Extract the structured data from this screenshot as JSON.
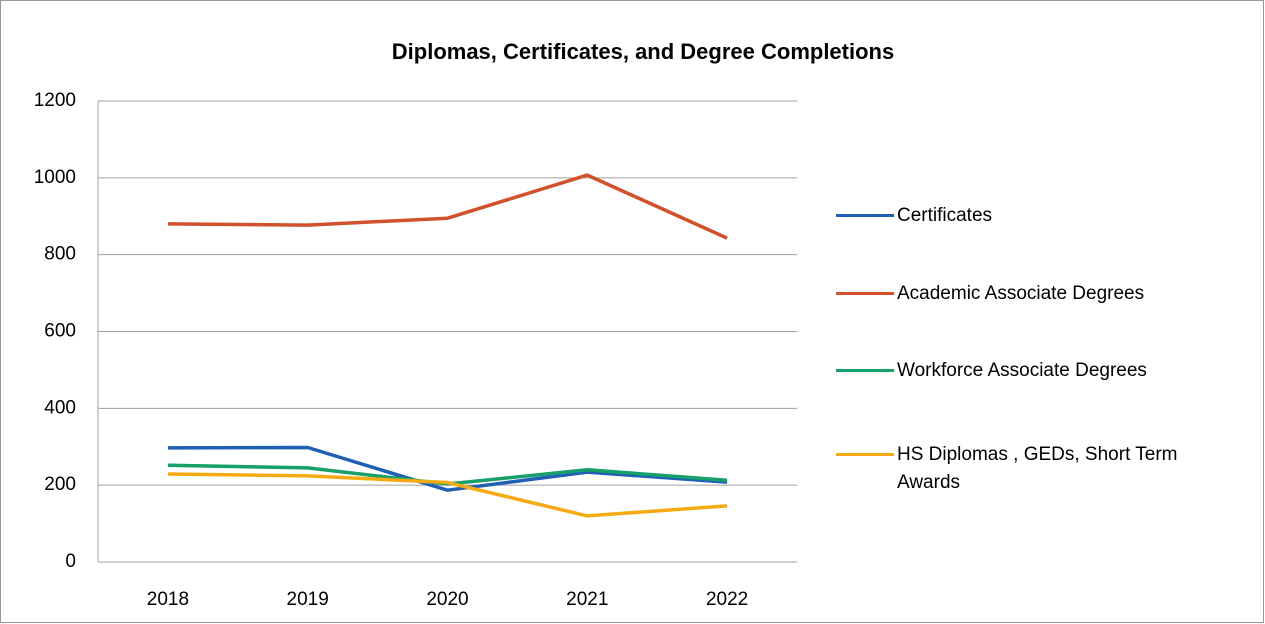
{
  "chart_data": {
    "type": "line",
    "title": "Diplomas, Certificates, and Degree Completions",
    "categories": [
      "2018",
      "2019",
      "2020",
      "2021",
      "2022"
    ],
    "series": [
      {
        "name": "Certificates",
        "color": "#1f5fb4",
        "values": [
          297,
          298,
          187,
          234,
          208
        ]
      },
      {
        "name": "Academic Associate Degrees",
        "color": "#d2502b",
        "values": [
          880,
          877,
          895,
          1007,
          843
        ]
      },
      {
        "name": "Workforce Associate Degrees",
        "color": "#17a06a",
        "values": [
          252,
          245,
          203,
          240,
          213
        ]
      },
      {
        "name": "HS Diplomas , GEDs, Short Term Awards",
        "color": "#f5aa14",
        "values": [
          229,
          224,
          207,
          120,
          146
        ]
      }
    ],
    "ylim": [
      0,
      1200
    ],
    "yticks": [
      0,
      200,
      400,
      600,
      800,
      1000,
      1200
    ],
    "grid": true,
    "legend": "right"
  }
}
